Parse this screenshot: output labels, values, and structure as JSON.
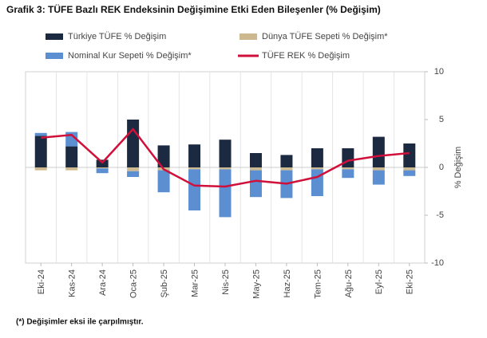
{
  "chart_data": {
    "type": "bar",
    "stacked": true,
    "title": "Grafik 3: TÜFE Bazlı REK Endeksinin Değişimine Etki Eden Bileşenler (% Değişim)",
    "categories": [
      "Eki-24",
      "Kas-24",
      "Ara-24",
      "Oca-25",
      "Şub-25",
      "Mar-25",
      "Nis-25",
      "May-25",
      "Haz-25",
      "Tem-25",
      "Ağu-25",
      "Eyl-25",
      "Eki-25"
    ],
    "series": [
      {
        "name": "Türkiye TÜFE % Değişim",
        "color": "#1b2a41",
        "type": "bar",
        "values": [
          3.3,
          2.2,
          0.8,
          5.0,
          2.3,
          2.4,
          2.9,
          1.5,
          1.3,
          2.0,
          2.0,
          3.2,
          2.5
        ]
      },
      {
        "name": "Dünya TÜFE Sepeti % Değişim*",
        "color": "#cdb98f",
        "type": "bar",
        "values": [
          -0.3,
          -0.3,
          -0.1,
          -0.4,
          -0.3,
          -0.2,
          -0.2,
          -0.3,
          -0.3,
          -0.2,
          -0.2,
          -0.3,
          -0.3
        ]
      },
      {
        "name": "Nominal Kur Sepeti % Değişim*",
        "color": "#5b8fd1",
        "type": "bar",
        "values": [
          0.3,
          1.5,
          -0.5,
          -0.6,
          -2.3,
          -4.3,
          -5.0,
          -2.8,
          -2.9,
          -2.8,
          -0.9,
          -1.5,
          -0.6
        ]
      },
      {
        "name": "TÜFE REK % Değişim",
        "color": "#d0103a",
        "type": "line",
        "values": [
          3.1,
          3.4,
          0.5,
          4.0,
          -0.2,
          -1.9,
          -2.0,
          -1.4,
          -1.7,
          -1.0,
          0.7,
          1.2,
          1.5
        ]
      }
    ],
    "ylim": [
      -10,
      10
    ],
    "yticks": [
      -10,
      -5,
      0,
      5,
      10
    ],
    "ylabel": "% Değişim",
    "grid": true,
    "footnote": "(*) Değişimler eksi ile çarpılmıştır."
  }
}
